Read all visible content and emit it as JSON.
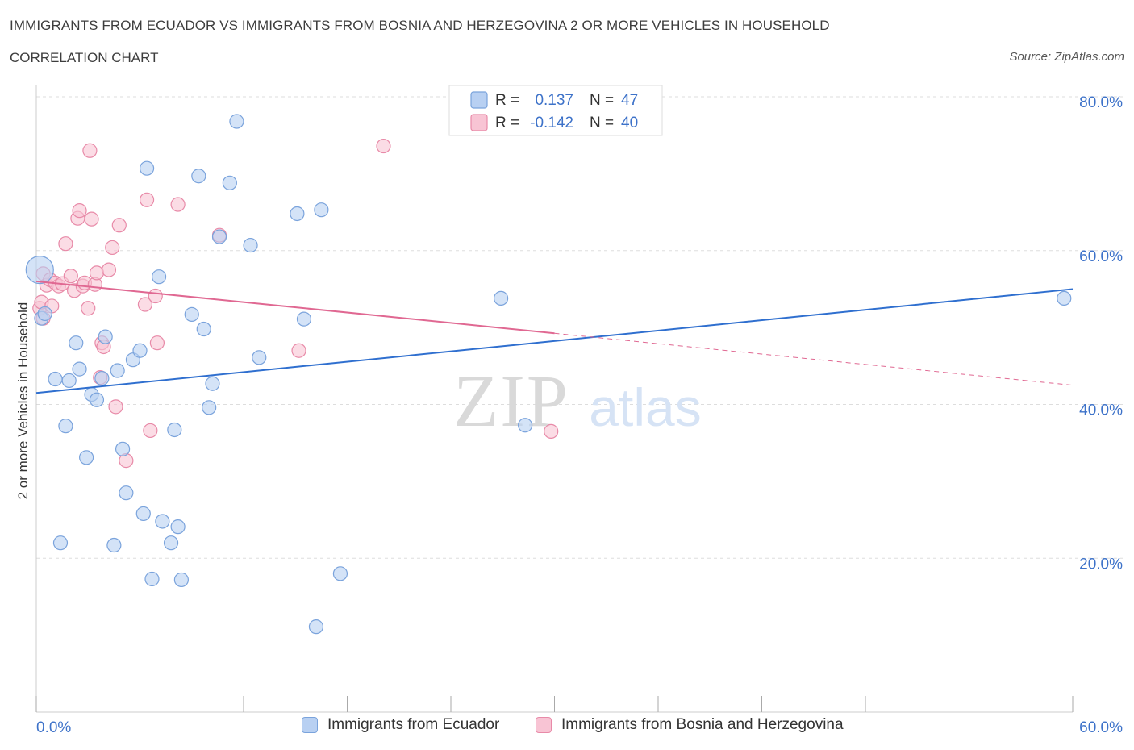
{
  "header": {
    "title": "IMMIGRANTS FROM ECUADOR VS IMMIGRANTS FROM BOSNIA AND HERZEGOVINA 2 OR MORE VEHICLES IN HOUSEHOLD",
    "subtitle": "CORRELATION CHART",
    "source": "Source: ZipAtlas.com"
  },
  "watermark": {
    "zip": "ZIP",
    "atlas": "atlas"
  },
  "colors": {
    "blue_fill": "#b8d0f2",
    "blue_stroke": "#7aa3dc",
    "blue_line": "#2f6fcf",
    "pink_fill": "#f8c4d4",
    "pink_stroke": "#e88aa8",
    "pink_line": "#e06892",
    "axis_label": "#3d72c9",
    "grid": "#dddddd"
  },
  "legend_top": [
    {
      "r_label": "R =",
      "r_value": "0.137",
      "n_label": "N =",
      "n_value": "47"
    },
    {
      "r_label": "R =",
      "r_value": "-0.142",
      "n_label": "N =",
      "n_value": "40"
    }
  ],
  "legend_bottom": [
    {
      "label": "Immigrants from Ecuador"
    },
    {
      "label": "Immigrants from Bosnia and Herzegovina"
    }
  ],
  "chart_data": {
    "type": "scatter",
    "title": "IMMIGRANTS FROM ECUADOR VS IMMIGRANTS FROM BOSNIA AND HERZEGOVINA 2 OR MORE VEHICLES IN HOUSEHOLD",
    "xlabel": "",
    "ylabel": "2 or more Vehicles in Household",
    "xlim": [
      0,
      60
    ],
    "ylim": [
      0,
      80
    ],
    "x_tick_labels": [
      "0.0%",
      "60.0%"
    ],
    "y_ticks": [
      20,
      40,
      60,
      80
    ],
    "y_tick_labels": [
      "20.0%",
      "40.0%",
      "60.0%",
      "80.0%"
    ],
    "series": [
      {
        "name": "Immigrants from Ecuador",
        "color": "blue",
        "R": 0.137,
        "N": 47,
        "trend": {
          "x": [
            0,
            60
          ],
          "y": [
            41.5,
            55.0
          ],
          "dashed_from": null
        },
        "points": [
          {
            "x": 0.2,
            "y": 57.5,
            "big": true
          },
          {
            "x": 0.3,
            "y": 51.2
          },
          {
            "x": 0.5,
            "y": 51.8
          },
          {
            "x": 1.1,
            "y": 43.3
          },
          {
            "x": 1.4,
            "y": 22.0
          },
          {
            "x": 1.7,
            "y": 37.2
          },
          {
            "x": 1.9,
            "y": 43.1
          },
          {
            "x": 2.3,
            "y": 48.0
          },
          {
            "x": 2.5,
            "y": 44.6
          },
          {
            "x": 2.9,
            "y": 33.1
          },
          {
            "x": 3.2,
            "y": 41.3
          },
          {
            "x": 3.5,
            "y": 40.6
          },
          {
            "x": 3.8,
            "y": 43.4
          },
          {
            "x": 4.0,
            "y": 48.8
          },
          {
            "x": 4.5,
            "y": 21.7
          },
          {
            "x": 4.7,
            "y": 44.4
          },
          {
            "x": 5.0,
            "y": 34.2
          },
          {
            "x": 5.2,
            "y": 28.5
          },
          {
            "x": 5.6,
            "y": 45.8
          },
          {
            "x": 6.0,
            "y": 47.0
          },
          {
            "x": 6.2,
            "y": 25.8
          },
          {
            "x": 6.4,
            "y": 70.7
          },
          {
            "x": 6.7,
            "y": 17.3
          },
          {
            "x": 7.1,
            "y": 56.6
          },
          {
            "x": 7.3,
            "y": 24.8
          },
          {
            "x": 7.8,
            "y": 22.0
          },
          {
            "x": 8.0,
            "y": 36.7
          },
          {
            "x": 8.2,
            "y": 24.1
          },
          {
            "x": 8.4,
            "y": 17.2
          },
          {
            "x": 9.0,
            "y": 51.7
          },
          {
            "x": 9.4,
            "y": 69.7
          },
          {
            "x": 9.7,
            "y": 49.8
          },
          {
            "x": 10.0,
            "y": 39.6
          },
          {
            "x": 10.2,
            "y": 42.7
          },
          {
            "x": 10.6,
            "y": 61.8
          },
          {
            "x": 11.2,
            "y": 68.8
          },
          {
            "x": 11.6,
            "y": 76.8
          },
          {
            "x": 12.4,
            "y": 60.7
          },
          {
            "x": 12.9,
            "y": 46.1
          },
          {
            "x": 15.1,
            "y": 64.8
          },
          {
            "x": 15.5,
            "y": 51.1
          },
          {
            "x": 16.2,
            "y": 11.1
          },
          {
            "x": 16.5,
            "y": 65.3
          },
          {
            "x": 17.6,
            "y": 18.0
          },
          {
            "x": 26.9,
            "y": 53.8
          },
          {
            "x": 28.3,
            "y": 37.3
          },
          {
            "x": 59.5,
            "y": 53.8
          }
        ]
      },
      {
        "name": "Immigrants from Bosnia and Herzegovina",
        "color": "pink",
        "R": -0.142,
        "N": 40,
        "trend": {
          "x": [
            0,
            60
          ],
          "y": [
            56.0,
            42.5
          ],
          "dashed_from": 30
        },
        "points": [
          {
            "x": 0.2,
            "y": 52.5
          },
          {
            "x": 0.3,
            "y": 53.3
          },
          {
            "x": 0.4,
            "y": 51.2
          },
          {
            "x": 0.4,
            "y": 57.0
          },
          {
            "x": 0.6,
            "y": 55.5
          },
          {
            "x": 0.8,
            "y": 56.2
          },
          {
            "x": 0.9,
            "y": 52.8
          },
          {
            "x": 1.1,
            "y": 55.8
          },
          {
            "x": 1.3,
            "y": 55.4
          },
          {
            "x": 1.5,
            "y": 55.7
          },
          {
            "x": 1.7,
            "y": 60.9
          },
          {
            "x": 2.0,
            "y": 56.7
          },
          {
            "x": 2.2,
            "y": 54.8
          },
          {
            "x": 2.4,
            "y": 64.2
          },
          {
            "x": 2.5,
            "y": 65.2
          },
          {
            "x": 2.7,
            "y": 55.4
          },
          {
            "x": 2.8,
            "y": 55.8
          },
          {
            "x": 3.0,
            "y": 52.5
          },
          {
            "x": 3.1,
            "y": 73.0
          },
          {
            "x": 3.2,
            "y": 64.1
          },
          {
            "x": 3.4,
            "y": 55.6
          },
          {
            "x": 3.5,
            "y": 57.1
          },
          {
            "x": 3.7,
            "y": 43.5
          },
          {
            "x": 3.8,
            "y": 48.0
          },
          {
            "x": 3.9,
            "y": 47.5
          },
          {
            "x": 4.2,
            "y": 57.5
          },
          {
            "x": 4.4,
            "y": 60.4
          },
          {
            "x": 4.6,
            "y": 39.7
          },
          {
            "x": 4.8,
            "y": 63.3
          },
          {
            "x": 5.2,
            "y": 32.7
          },
          {
            "x": 6.3,
            "y": 53.0
          },
          {
            "x": 6.4,
            "y": 66.6
          },
          {
            "x": 6.6,
            "y": 36.6
          },
          {
            "x": 6.9,
            "y": 54.1
          },
          {
            "x": 7.0,
            "y": 48.0
          },
          {
            "x": 8.2,
            "y": 66.0
          },
          {
            "x": 10.6,
            "y": 62.0
          },
          {
            "x": 15.2,
            "y": 47.0
          },
          {
            "x": 20.1,
            "y": 73.6
          },
          {
            "x": 29.8,
            "y": 36.5
          }
        ]
      }
    ]
  }
}
